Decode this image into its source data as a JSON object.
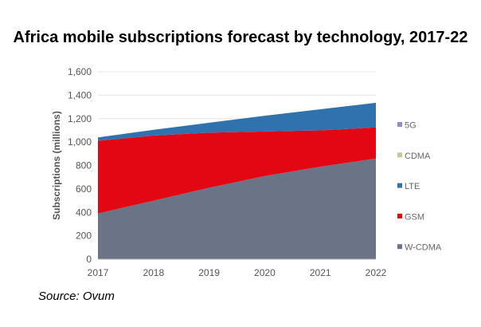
{
  "title": "Africa mobile subscriptions forecast by technology, 2017-22",
  "source": "Source: Ovum",
  "chart_data": {
    "type": "area",
    "stacked": true,
    "title": "Africa mobile subscriptions forecast by technology, 2017-22",
    "ylabel": "Subscriptions (millions)",
    "xlabel": "",
    "categories": [
      "2017",
      "2018",
      "2019",
      "2020",
      "2021",
      "2022"
    ],
    "ylim": [
      0,
      1600
    ],
    "yticks": [
      0,
      200,
      400,
      600,
      800,
      1000,
      1200,
      1400,
      1600
    ],
    "ytick_labels": [
      "0",
      "200",
      "400",
      "600",
      "800",
      "1,000",
      "1,200",
      "1,400",
      "1,600"
    ],
    "grid": true,
    "legend_position": "right",
    "series": [
      {
        "name": "W-CDMA",
        "color": "#6b7386",
        "values": [
          390,
          500,
          610,
          710,
          790,
          860
        ]
      },
      {
        "name": "GSM",
        "color": "#e30613",
        "values": [
          620,
          555,
          470,
          380,
          310,
          265
        ]
      },
      {
        "name": "LTE",
        "color": "#3072ad",
        "values": [
          30,
          50,
          85,
          135,
          180,
          210
        ]
      },
      {
        "name": "CDMA",
        "color": "#b5d08f",
        "values": [
          0,
          0,
          0,
          0,
          0,
          0
        ]
      },
      {
        "name": "5G",
        "color": "#8f8fc8",
        "values": [
          0,
          0,
          0,
          0,
          0,
          0
        ]
      }
    ]
  }
}
